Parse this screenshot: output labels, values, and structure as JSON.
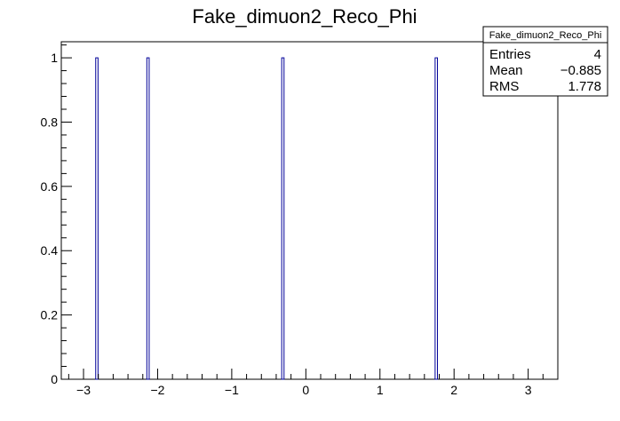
{
  "chart_data": {
    "type": "bar",
    "title": "Fake_dimuon2_Reco_Phi",
    "xlabel": "",
    "ylabel": "",
    "xlim": [
      -3.3,
      3.4
    ],
    "ylim": [
      0,
      1.05
    ],
    "grid": false,
    "x_ticks": [
      -3,
      -2,
      -1,
      0,
      1,
      2,
      3
    ],
    "x_tick_labels": [
      "−3",
      "−2",
      "−1",
      "0",
      "1",
      "2",
      "3"
    ],
    "y_ticks": [
      0,
      0.2,
      0.4,
      0.6,
      0.8,
      1
    ],
    "y_tick_labels": [
      "0",
      "0.2",
      "0.4",
      "0.6",
      "0.8",
      "1"
    ],
    "bin_width": 0.0314,
    "series": [
      {
        "x": [
          -2.82,
          -2.13,
          -0.31,
          1.76
        ],
        "values": [
          1,
          1,
          1,
          1
        ],
        "color": "#000099"
      }
    ],
    "stats_box": {
      "title": "Fake_dimuon2_Reco_Phi",
      "rows": [
        {
          "label": "Entries",
          "value": "4"
        },
        {
          "label": "Mean",
          "value": "−0.885"
        },
        {
          "label": "RMS",
          "value": "1.778"
        }
      ]
    }
  }
}
